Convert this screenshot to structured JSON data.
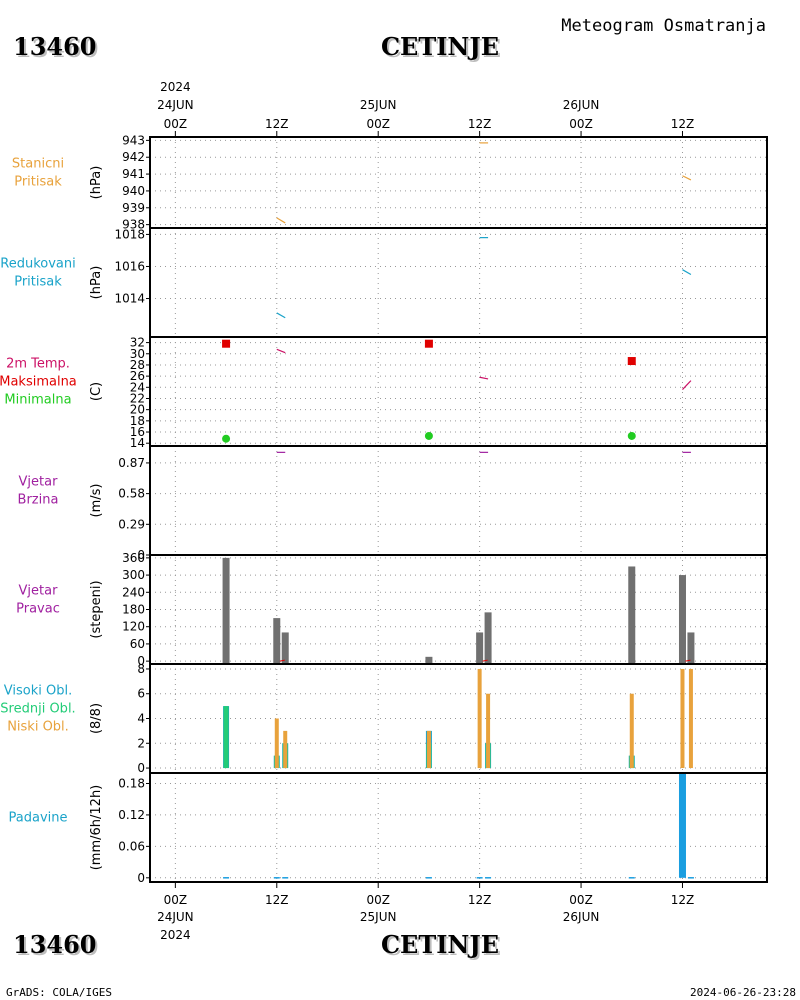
{
  "header": {
    "station_id": "13460",
    "station_name": "CETINJE",
    "subtitle": "Meteogram Osmatranja"
  },
  "footer": {
    "station_id": "13460",
    "station_name": "CETINJE",
    "credit": "GrADS: COLA/IGES",
    "timestamp": "2024-06-26-23:28"
  },
  "time_axis": {
    "year": "2024",
    "ticks": [
      {
        "h": 0,
        "label": "00Z",
        "date": "24JUN"
      },
      {
        "h": 12,
        "label": "12Z",
        "date": ""
      },
      {
        "h": 24,
        "label": "00Z",
        "date": "25JUN"
      },
      {
        "h": 36,
        "label": "12Z",
        "date": ""
      },
      {
        "h": 48,
        "label": "00Z",
        "date": "26JUN"
      },
      {
        "h": 60,
        "label": "12Z",
        "date": ""
      }
    ],
    "range_hours": [
      -3,
      70
    ]
  },
  "colors": {
    "pressure": "#e8a23c",
    "reduced_pressure": "#1aa3c9",
    "temp_line": "#cc1166",
    "tmax": "#e00000",
    "tmin": "#22cc22",
    "wind": "#a020a0",
    "direction_bar": "#707070",
    "high_cloud": "#1aa3c9",
    "mid_cloud": "#22cc77",
    "low_cloud": "#e8a23c",
    "precip": "#1a9ee0",
    "grid": "#999999"
  },
  "chart_data": [
    {
      "panel": "stanicni",
      "type": "line",
      "label_lines": [
        "Stanicni",
        "Pritisak"
      ],
      "label_color": "#e8a23c",
      "ylabel": "(hPa)",
      "ylim": [
        937.8,
        943.2
      ],
      "yticks": [
        938,
        939,
        940,
        941,
        942,
        943
      ],
      "series": [
        {
          "segment": [
            [
              12,
              938.4
            ],
            [
              13,
              938.1
            ]
          ]
        },
        {
          "segment": [
            [
              36,
              942.85
            ],
            [
              37,
              942.85
            ]
          ]
        },
        {
          "segment": [
            [
              60,
              940.9
            ],
            [
              61,
              940.65
            ]
          ]
        }
      ]
    },
    {
      "panel": "redukovani",
      "type": "line",
      "label_lines": [
        "Redukovani",
        "Pritisak"
      ],
      "label_color": "#1aa3c9",
      "ylabel": "(hPa)",
      "ylim": [
        1011.6,
        1018.4
      ],
      "yticks": [
        1014,
        1016,
        1018
      ],
      "series": [
        {
          "segment": [
            [
              12,
              1013.1
            ],
            [
              13,
              1012.8
            ]
          ]
        },
        {
          "segment": [
            [
              36,
              1017.8
            ],
            [
              37,
              1017.8
            ]
          ]
        },
        {
          "segment": [
            [
              60,
              1015.8
            ],
            [
              61,
              1015.5
            ]
          ]
        }
      ]
    },
    {
      "panel": "temperatura",
      "type": "line",
      "label_lines": [
        "2m Temp.",
        "Maksimalna",
        "Minimalna"
      ],
      "label_colors": [
        "#cc1166",
        "#e00000",
        "#22cc22"
      ],
      "ylabel": "(C)",
      "ylim": [
        13.5,
        33
      ],
      "yticks": [
        14,
        16,
        18,
        20,
        22,
        24,
        26,
        28,
        30,
        32
      ],
      "series": [
        {
          "segment": [
            [
              12,
              30.8
            ],
            [
              13,
              30.2
            ]
          ]
        },
        {
          "segment": [
            [
              36,
              25.8
            ],
            [
              37,
              25.5
            ]
          ]
        },
        {
          "segment": [
            [
              60,
              23.6
            ],
            [
              61,
              25.2
            ]
          ]
        }
      ],
      "tmax": [
        [
          6,
          31.8
        ],
        [
          30,
          31.8
        ],
        [
          54,
          28.7
        ]
      ],
      "tmin": [
        [
          6,
          14.8
        ],
        [
          30,
          15.3
        ],
        [
          54,
          15.3
        ]
      ]
    },
    {
      "panel": "brzina",
      "type": "line",
      "label_lines": [
        "Vjetar",
        "Brzina"
      ],
      "label_color": "#a020a0",
      "ylabel": "(m/s)",
      "ylim": [
        0,
        1.03
      ],
      "yticks": [
        0,
        0.29,
        0.58,
        0.87
      ],
      "ytick_labels": [
        "0",
        "0.29",
        "0.58",
        "0.87"
      ],
      "series": [
        {
          "segment": [
            [
              12,
              0.97
            ],
            [
              13,
              0.97
            ]
          ]
        },
        {
          "segment": [
            [
              36,
              0.97
            ],
            [
              37,
              0.97
            ]
          ]
        },
        {
          "segment": [
            [
              60,
              0.97
            ],
            [
              61,
              0.97
            ]
          ]
        }
      ]
    },
    {
      "panel": "pravac",
      "type": "bar",
      "label_lines": [
        "Vjetar",
        "Pravac"
      ],
      "label_color": "#a020a0",
      "ylabel": "(stepeni)",
      "ylim": [
        -10,
        370
      ],
      "yticks": [
        0,
        60,
        120,
        180,
        240,
        300,
        360
      ],
      "bars": [
        {
          "h": 6,
          "v": 360
        },
        {
          "h": 12,
          "v": 150
        },
        {
          "h": 13,
          "v": 100
        },
        {
          "h": 30,
          "v": 15
        },
        {
          "h": 36,
          "v": 100
        },
        {
          "h": 37,
          "v": 170
        },
        {
          "h": 54,
          "v": 330
        },
        {
          "h": 60,
          "v": 300
        },
        {
          "h": 61,
          "v": 100
        }
      ]
    },
    {
      "panel": "oblaci",
      "type": "bar",
      "label_lines": [
        "Visoki Obl.",
        "Srednji Obl.",
        "Niski Obl."
      ],
      "label_colors": [
        "#1aa3c9",
        "#22cc77",
        "#e8a23c"
      ],
      "ylabel": "(8/8)",
      "ylim": [
        -0.4,
        8.4
      ],
      "yticks": [
        0,
        2,
        4,
        6,
        8
      ],
      "high": [
        {
          "h": 6,
          "v": 5
        },
        {
          "h": 12,
          "v": 1
        },
        {
          "h": 13,
          "v": 2
        },
        {
          "h": 30,
          "v": 3
        },
        {
          "h": 37,
          "v": 2
        },
        {
          "h": 54,
          "v": 1
        }
      ],
      "mid": [
        {
          "h": 6,
          "v": 5
        },
        {
          "h": 12,
          "v": 1
        },
        {
          "h": 13,
          "v": 2
        },
        {
          "h": 30,
          "v": 2
        },
        {
          "h": 37,
          "v": 2
        },
        {
          "h": 54,
          "v": 1
        }
      ],
      "low": [
        {
          "h": 12,
          "v": 4
        },
        {
          "h": 13,
          "v": 3
        },
        {
          "h": 30,
          "v": 3
        },
        {
          "h": 36,
          "v": 8
        },
        {
          "h": 37,
          "v": 6
        },
        {
          "h": 54,
          "v": 6
        },
        {
          "h": 60,
          "v": 8
        },
        {
          "h": 61,
          "v": 8
        }
      ]
    },
    {
      "panel": "padavine",
      "type": "bar",
      "label_lines": [
        "Padavine"
      ],
      "label_color": "#1aa3c9",
      "ylabel": "(mm/6h/12h)",
      "ylim": [
        -0.008,
        0.2
      ],
      "yticks": [
        0,
        0.06,
        0.12,
        0.18
      ],
      "ytick_labels": [
        "0",
        "0.06",
        "0.12",
        "0.18"
      ],
      "bars": [
        {
          "h": 6,
          "v": 0
        },
        {
          "h": 12,
          "v": 0
        },
        {
          "h": 13,
          "v": 0
        },
        {
          "h": 30,
          "v": 0
        },
        {
          "h": 36,
          "v": 0
        },
        {
          "h": 37,
          "v": 0
        },
        {
          "h": 54,
          "v": 0
        },
        {
          "h": 60,
          "v": 0.2
        },
        {
          "h": 61,
          "v": 0
        }
      ]
    }
  ]
}
